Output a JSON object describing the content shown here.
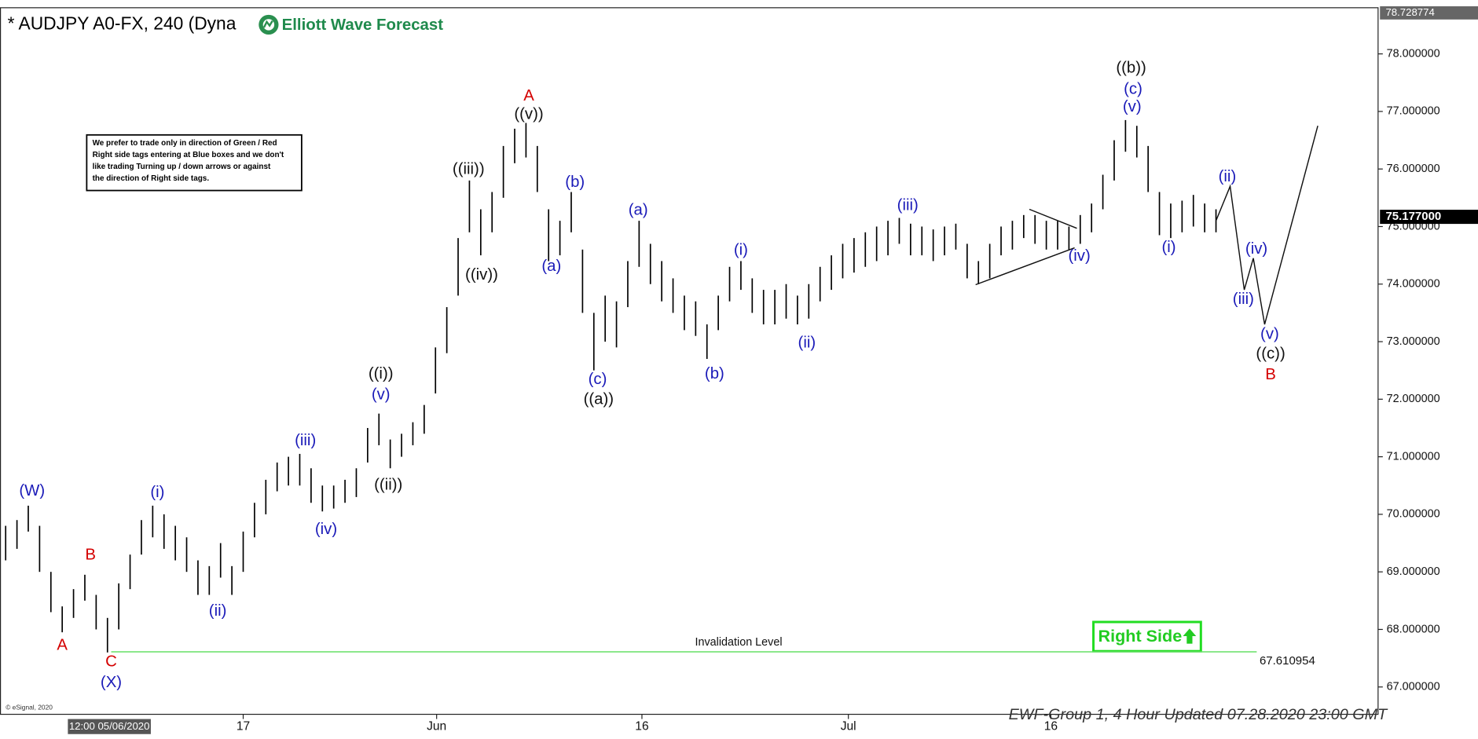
{
  "chart_data": {
    "type": "range",
    "title": "* AUDJPY A0-FX, 240 (Dyna",
    "logo": "Elliott Wave Forecast",
    "bar_color": "#000000",
    "x": [
      0,
      1,
      2,
      3,
      4,
      5,
      6,
      7,
      8,
      9,
      10,
      11,
      12,
      13,
      14,
      15,
      16,
      17,
      18,
      19,
      20,
      21,
      22,
      23,
      24,
      25,
      26,
      27,
      28,
      29,
      30,
      31,
      32,
      33,
      34,
      35,
      36,
      37,
      38,
      39,
      40,
      41,
      42,
      43,
      44,
      45,
      46,
      47,
      48,
      49,
      50,
      51,
      52,
      53,
      54,
      55,
      56,
      57,
      58,
      59,
      60,
      61,
      62,
      63,
      64,
      65,
      66,
      67,
      68,
      69,
      70,
      71,
      72,
      73,
      74,
      75,
      76,
      77,
      78,
      79,
      80,
      81,
      82,
      83,
      84,
      85,
      86,
      87,
      88,
      89,
      90,
      91,
      92,
      93,
      94,
      95,
      96,
      97,
      98,
      99,
      100,
      101,
      102,
      103,
      104,
      105,
      106,
      107
    ],
    "high": [
      69.8,
      69.9,
      70.15,
      69.8,
      69.0,
      68.4,
      68.7,
      68.95,
      68.6,
      68.2,
      68.8,
      69.3,
      69.9,
      70.15,
      70.0,
      69.8,
      69.6,
      69.2,
      69.1,
      69.5,
      69.1,
      69.7,
      70.2,
      70.6,
      70.9,
      71.0,
      71.05,
      70.8,
      70.5,
      70.5,
      70.6,
      70.8,
      71.5,
      71.75,
      71.3,
      71.4,
      71.6,
      71.9,
      72.9,
      73.6,
      74.8,
      75.8,
      75.3,
      75.6,
      76.4,
      76.7,
      76.8,
      76.4,
      75.3,
      75.1,
      75.6,
      74.6,
      73.5,
      73.8,
      73.7,
      74.4,
      75.1,
      74.7,
      74.4,
      74.1,
      73.8,
      73.7,
      73.3,
      73.8,
      74.3,
      74.4,
      74.1,
      73.9,
      73.9,
      74.0,
      73.8,
      74.0,
      74.3,
      74.5,
      74.7,
      74.8,
      74.9,
      75.0,
      75.1,
      75.15,
      75.05,
      75.0,
      74.95,
      75.0,
      75.05,
      74.7,
      74.4,
      74.7,
      75.0,
      75.1,
      75.2,
      75.2,
      75.1,
      75.1,
      75.0,
      75.2,
      75.4,
      75.9,
      76.5,
      76.85,
      76.75,
      76.4,
      75.6,
      75.4,
      75.45,
      75.55,
      75.4,
      75.3
    ],
    "low": [
      69.2,
      69.4,
      69.7,
      69.0,
      68.3,
      67.95,
      68.2,
      68.5,
      68.0,
      67.6,
      68.0,
      68.7,
      69.3,
      69.6,
      69.4,
      69.2,
      69.0,
      68.6,
      68.6,
      68.9,
      68.6,
      69.0,
      69.6,
      70.0,
      70.4,
      70.5,
      70.5,
      70.2,
      70.05,
      70.1,
      70.2,
      70.3,
      70.9,
      71.2,
      70.8,
      71.0,
      71.2,
      71.4,
      72.1,
      72.8,
      73.8,
      74.9,
      74.5,
      74.9,
      75.5,
      76.1,
      76.2,
      75.6,
      74.4,
      74.5,
      74.9,
      73.5,
      72.5,
      73.0,
      72.9,
      73.6,
      74.3,
      74.0,
      73.7,
      73.5,
      73.2,
      73.1,
      72.7,
      73.2,
      73.7,
      73.9,
      73.5,
      73.3,
      73.3,
      73.4,
      73.3,
      73.4,
      73.7,
      73.9,
      74.1,
      74.2,
      74.3,
      74.4,
      74.5,
      74.7,
      74.5,
      74.5,
      74.4,
      74.5,
      74.6,
      74.1,
      74.0,
      74.1,
      74.5,
      74.6,
      74.8,
      74.7,
      74.6,
      74.6,
      74.6,
      74.7,
      74.9,
      75.3,
      75.8,
      76.3,
      76.2,
      75.6,
      74.85,
      74.8,
      74.9,
      75.0,
      74.9,
      74.9
    ],
    "xlim": [
      -0.5,
      121.33
    ],
    "ylim": [
      66.525,
      78.802
    ],
    "xticks": [
      {
        "value": 21,
        "label": "17"
      },
      {
        "value": 38.1,
        "label": "Jun"
      },
      {
        "value": 56.25,
        "label": "16"
      },
      {
        "value": 74.5,
        "label": "Jul"
      },
      {
        "value": 92.4,
        "label": "16"
      }
    ],
    "yticks": [
      {
        "value": 67,
        "label": "67.000000"
      },
      {
        "value": 68,
        "label": "68.000000"
      },
      {
        "value": 69,
        "label": "69.000000"
      },
      {
        "value": 70,
        "label": "70.000000"
      },
      {
        "value": 71,
        "label": "71.000000"
      },
      {
        "value": 72,
        "label": "72.000000"
      },
      {
        "value": 73,
        "label": "73.000000"
      },
      {
        "value": 74,
        "label": "74.000000"
      },
      {
        "value": 75,
        "label": "75.000000"
      },
      {
        "value": 76,
        "label": "76.000000"
      },
      {
        "value": 77,
        "label": "77.000000"
      },
      {
        "value": 78,
        "label": "78.000000"
      }
    ],
    "max_price": 78.728774,
    "last_price": {
      "value": 75.177,
      "label": "75.177000"
    },
    "cursor_label": {
      "x": 9.25,
      "label": "12:00 05/06/2020"
    },
    "invalidation": {
      "label": "Invalidation Level",
      "value": 67.610954,
      "x": [
        9.33,
        110.6
      ],
      "color": "#66e066"
    },
    "lines": [
      {
        "x": [
          107,
          108.25,
          109.5,
          110.3,
          111.3,
          116
        ],
        "y": [
          75.1,
          75.7,
          73.9,
          74.45,
          73.3,
          76.75
        ]
      },
      {
        "x": [
          90.5,
          94.7
        ],
        "y": [
          75.3,
          74.97
        ]
      },
      {
        "x": [
          85.75,
          94.5
        ],
        "y": [
          73.99,
          74.63
        ]
      }
    ],
    "annotations": [
      {
        "text": "(W)",
        "x": 2.33,
        "y": 70.4,
        "color": "#1a1ab8"
      },
      {
        "text": "A",
        "x": 5,
        "y": 67.72,
        "color": "#d40000"
      },
      {
        "text": "B",
        "x": 7.5,
        "y": 69.29,
        "color": "#d40000"
      },
      {
        "text": "C",
        "x": 9.33,
        "y": 67.43,
        "color": "#d40000"
      },
      {
        "text": "(X)",
        "x": 9.33,
        "y": 67.07,
        "color": "#1a1ab8"
      },
      {
        "text": "(i)",
        "x": 13.42,
        "y": 70.37,
        "color": "#1a1ab8"
      },
      {
        "text": "(ii)",
        "x": 18.75,
        "y": 68.31,
        "color": "#1a1ab8"
      },
      {
        "text": "(iii)",
        "x": 26.5,
        "y": 71.27,
        "color": "#1a1ab8"
      },
      {
        "text": "(iv)",
        "x": 28.33,
        "y": 69.73,
        "color": "#1a1ab8"
      },
      {
        "text": "(v)",
        "x": 33.17,
        "y": 72.07,
        "color": "#1a1ab8"
      },
      {
        "text": "((i))",
        "x": 33.17,
        "y": 72.43,
        "color": "#111111"
      },
      {
        "text": "((ii))",
        "x": 33.83,
        "y": 70.5,
        "color": "#111111"
      },
      {
        "text": "((iii))",
        "x": 40.92,
        "y": 75.99,
        "color": "#111111"
      },
      {
        "text": "((iv))",
        "x": 42.08,
        "y": 74.15,
        "color": "#111111"
      },
      {
        "text": "((v))",
        "x": 46.25,
        "y": 76.94,
        "color": "#111111"
      },
      {
        "text": "A",
        "x": 46.25,
        "y": 77.26,
        "color": "#d40000"
      },
      {
        "text": "(a)",
        "x": 48.25,
        "y": 74.3,
        "color": "#1a1ab8"
      },
      {
        "text": "(b)",
        "x": 50.33,
        "y": 75.76,
        "color": "#1a1ab8"
      },
      {
        "text": "(c)",
        "x": 52.33,
        "y": 72.34,
        "color": "#1a1ab8"
      },
      {
        "text": "((a))",
        "x": 52.42,
        "y": 71.99,
        "color": "#111111"
      },
      {
        "text": "(a)",
        "x": 55.92,
        "y": 75.28,
        "color": "#1a1ab8"
      },
      {
        "text": "(b)",
        "x": 62.67,
        "y": 72.43,
        "color": "#1a1ab8"
      },
      {
        "text": "(i)",
        "x": 65,
        "y": 74.58,
        "color": "#1a1ab8"
      },
      {
        "text": "(ii)",
        "x": 70.83,
        "y": 72.97,
        "color": "#1a1ab8"
      },
      {
        "text": "(iii)",
        "x": 79.75,
        "y": 75.36,
        "color": "#1a1ab8"
      },
      {
        "text": "(iv)",
        "x": 94.92,
        "y": 74.48,
        "color": "#1a1ab8"
      },
      {
        "text": "((b))",
        "x": 99.5,
        "y": 77.75,
        "color": "#111111"
      },
      {
        "text": "(c)",
        "x": 99.67,
        "y": 77.38,
        "color": "#1a1ab8"
      },
      {
        "text": "(v)",
        "x": 99.58,
        "y": 77.07,
        "color": "#1a1ab8"
      },
      {
        "text": "(i)",
        "x": 102.83,
        "y": 74.63,
        "color": "#1a1ab8"
      },
      {
        "text": "(ii)",
        "x": 108,
        "y": 75.86,
        "color": "#1a1ab8"
      },
      {
        "text": "(iv)",
        "x": 110.58,
        "y": 74.6,
        "color": "#1a1ab8"
      },
      {
        "text": "(iii)",
        "x": 109.42,
        "y": 73.73,
        "color": "#1a1ab8"
      },
      {
        "text": "(v)",
        "x": 111.75,
        "y": 73.12,
        "color": "#1a1ab8"
      },
      {
        "text": "((c))",
        "x": 111.83,
        "y": 72.78,
        "color": "#111111"
      },
      {
        "text": "B",
        "x": 111.83,
        "y": 72.42,
        "color": "#d40000"
      }
    ],
    "note": [
      "We prefer to trade only in direction of Green / Red",
      "Right side tags entering at Blue boxes and we don't",
      "like trading Turning up / down arrows or against",
      "the direction of Right side tags."
    ],
    "right_side": "Right Side",
    "footer": "EWF-Group 1, 4 Hour Updated 07.28.2020 23:00 GMT",
    "copyright": "© eSignal, 2020"
  }
}
